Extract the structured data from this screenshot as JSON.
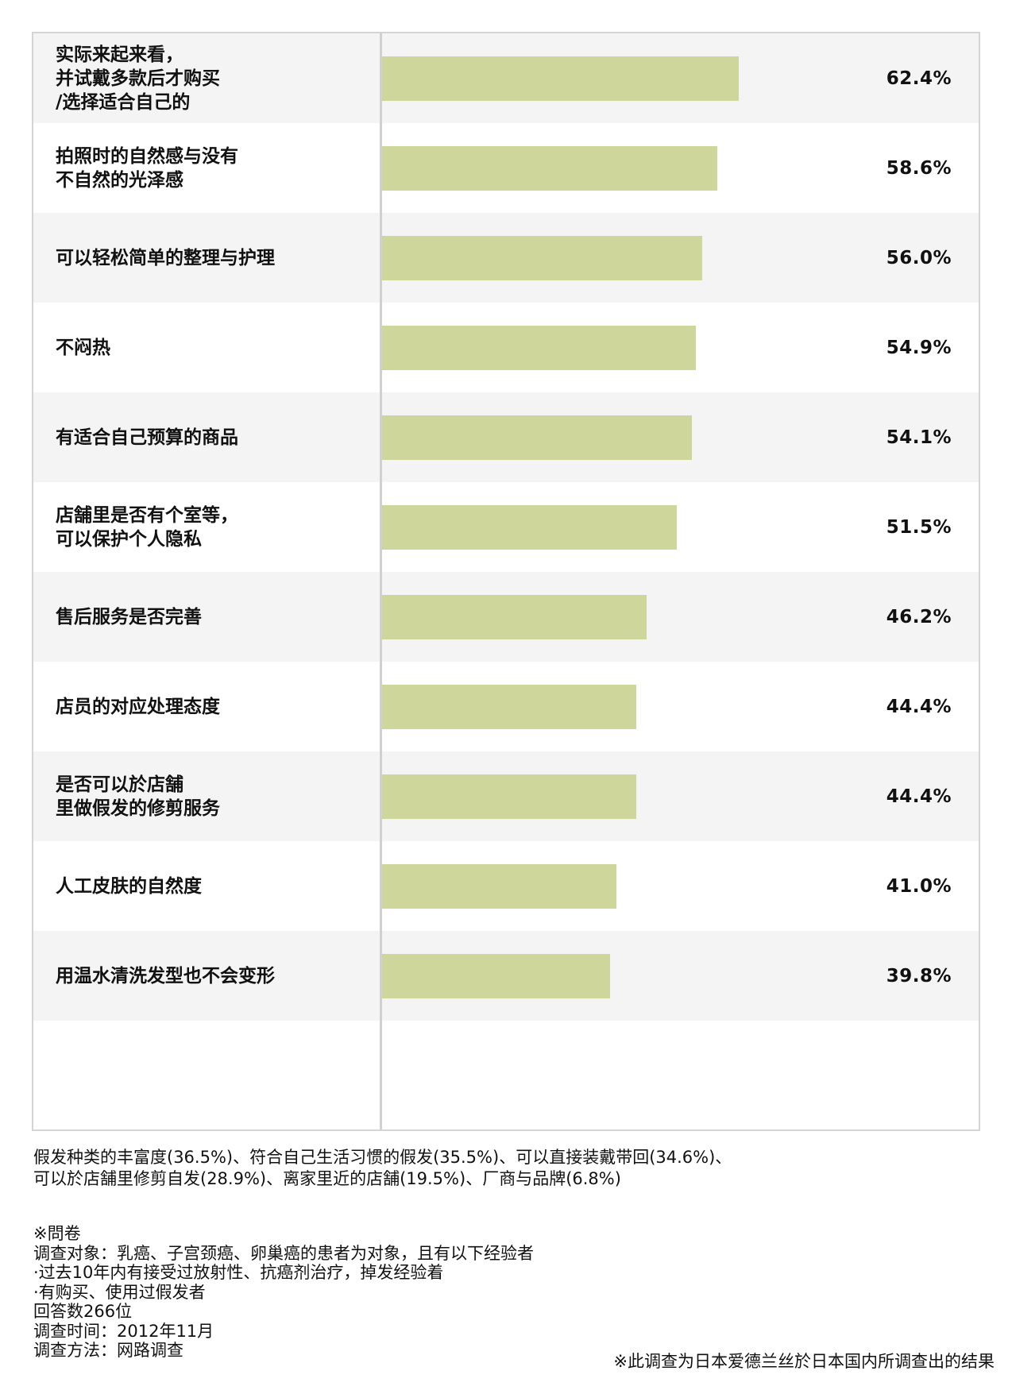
{
  "chart_data": {
    "type": "bar",
    "orientation": "horizontal",
    "categories": [
      "实际来起来看，\n并试戴多款后才购买\n/选择适合自己的",
      "拍照时的自然感与没有\n不自然的光泽感",
      "可以轻松简单的整理与护理",
      "不闷热",
      "有适合自己预算的商品",
      "店舗里是否有个室等，\n可以保护个人隐私",
      "售后服务是否完善",
      "店员的对应处理态度",
      "是否可以於店舗\n里做假发的修剪服务",
      "人工皮肤的自然度",
      "用温水清洗发型也不会变形"
    ],
    "values": [
      62.4,
      58.6,
      56.0,
      54.9,
      54.1,
      51.5,
      46.2,
      44.4,
      44.4,
      41.0,
      39.8
    ],
    "value_labels": [
      "62.4%",
      "58.6%",
      "56.0%",
      "54.9%",
      "54.1%",
      "51.5%",
      "46.2%",
      "44.4%",
      "44.4%",
      "41.0%",
      "39.8%"
    ],
    "xlim": [
      0,
      100
    ],
    "bar_color": "#cfd69c",
    "row_colors": [
      "#f4f4f4",
      "#ffffff"
    ],
    "grid": false
  },
  "notes": {
    "other": [
      "假发种类的丰富度(36.5%)、符合自己生活习惯的假发(35.5%)、可以直接装戴带回(34.6%)、",
      "可以於店舗里修剪自发(28.9%)、离家里近的店舗(19.5%)、厂商与品牌(6.8%)"
    ],
    "survey": [
      "※問卷",
      "调查对象：乳癌、子宫颈癌、卵巢癌的患者为对象，且有以下经验者",
      "·过去10年内有接受过放射性、抗癌剂治疗，掉发经验着",
      "·有购买、使用过假发者",
      "回答数266位",
      "调查时间：2012年11月",
      "调查方法：网路调查"
    ],
    "source": "※此调查为日本爱德兰丝於日本国内所调查出的结果"
  }
}
